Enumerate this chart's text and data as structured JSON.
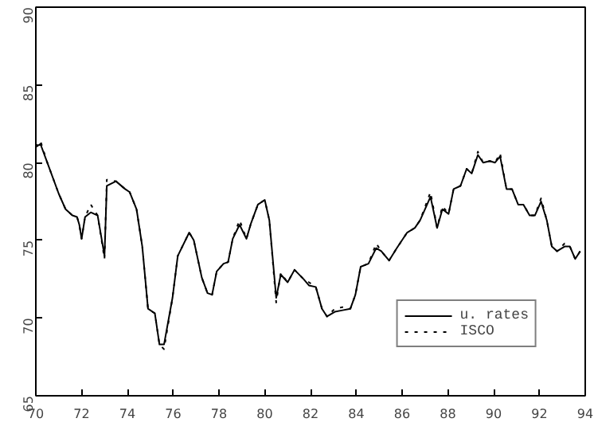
{
  "chart_data": {
    "type": "line",
    "xlim": [
      70,
      94
    ],
    "ylim": [
      65,
      90
    ],
    "xticks": [
      70,
      72,
      74,
      76,
      78,
      80,
      82,
      84,
      86,
      88,
      90,
      92,
      94
    ],
    "yticks": [
      65,
      70,
      75,
      80,
      85,
      90
    ],
    "grid": false,
    "legend": "bottom right",
    "tick_labels": "xy",
    "x": [
      70.0,
      70.2,
      70.5,
      71.0,
      71.3,
      71.6,
      71.8,
      71.9,
      72.0,
      72.15,
      72.4,
      72.7,
      73.0,
      73.1,
      73.5,
      73.9,
      74.1,
      74.4,
      74.65,
      74.9,
      75.2,
      75.4,
      75.6,
      75.97,
      76.2,
      76.7,
      76.9,
      77.25,
      77.5,
      77.7,
      77.9,
      78.2,
      78.4,
      78.6,
      78.9,
      79.2,
      79.4,
      79.7,
      80.0,
      80.2,
      80.5,
      80.7,
      81.0,
      81.3,
      81.7,
      81.93,
      82.23,
      82.5,
      82.72,
      83.06,
      83.4,
      83.74,
      83.96,
      84.19,
      84.53,
      84.87,
      85.09,
      85.43,
      85.77,
      86.22,
      86.56,
      86.79,
      87.24,
      87.53,
      87.76,
      88.03,
      88.25,
      88.55,
      88.82,
      89.04,
      89.31,
      89.54,
      89.83,
      90.06,
      90.28,
      90.56,
      90.8,
      91.07,
      91.3,
      91.57,
      91.8,
      92.07,
      92.32,
      92.54,
      92.77,
      93.1,
      93.33,
      93.56,
      93.78
    ],
    "series": [
      {
        "name": "u. rates",
        "color": "#000000",
        "line_style": "solid",
        "values": [
          81.0,
          81.2,
          80.0,
          78.0,
          77.0,
          76.6,
          76.5,
          76.0,
          75.1,
          76.5,
          76.8,
          76.6,
          74.0,
          78.5,
          78.8,
          78.3,
          78.1,
          77.0,
          74.6,
          70.6,
          70.3,
          68.3,
          68.3,
          71.3,
          74.0,
          75.5,
          75.0,
          72.6,
          71.6,
          71.5,
          73.0,
          73.5,
          73.6,
          75.1,
          76.0,
          75.1,
          76.1,
          77.3,
          77.6,
          76.3,
          71.3,
          72.8,
          72.3,
          73.1,
          72.5,
          72.1,
          72.0,
          70.6,
          70.1,
          70.4,
          70.5,
          70.6,
          71.5,
          73.3,
          73.5,
          74.5,
          74.3,
          73.7,
          74.5,
          75.5,
          75.8,
          76.3,
          77.8,
          75.8,
          77.0,
          76.7,
          78.3,
          78.5,
          79.6,
          79.3,
          80.5,
          80.0,
          80.1,
          80.0,
          80.4,
          78.3,
          78.3,
          77.3,
          77.3,
          76.6,
          76.6,
          77.5,
          76.3,
          74.6,
          74.3,
          74.6,
          74.6,
          73.8,
          74.3
        ]
      },
      {
        "name": "ISCO",
        "color": "#000000",
        "line_style": "dotted",
        "values": [
          81.0,
          81.4,
          80.0,
          78.0,
          77.0,
          76.6,
          76.5,
          76.0,
          75.1,
          76.5,
          77.3,
          76.6,
          73.8,
          78.9,
          78.8,
          78.3,
          78.1,
          77.0,
          74.6,
          70.6,
          70.3,
          68.3,
          68.0,
          71.3,
          74.0,
          75.5,
          75.0,
          72.6,
          71.6,
          71.5,
          73.0,
          73.5,
          73.6,
          75.1,
          76.3,
          75.1,
          76.1,
          77.3,
          77.6,
          76.3,
          71.0,
          72.9,
          72.3,
          73.1,
          72.5,
          72.3,
          72.0,
          70.6,
          70.1,
          70.6,
          70.7,
          70.6,
          71.5,
          73.3,
          73.5,
          74.8,
          74.3,
          73.7,
          74.5,
          75.5,
          75.8,
          76.3,
          78.1,
          75.8,
          77.2,
          76.7,
          78.3,
          78.5,
          79.6,
          79.3,
          80.7,
          80.0,
          80.1,
          80.0,
          80.6,
          78.3,
          78.3,
          77.3,
          77.3,
          76.6,
          76.6,
          77.7,
          76.3,
          74.6,
          74.3,
          74.8,
          74.6,
          73.8,
          74.3
        ]
      }
    ]
  }
}
